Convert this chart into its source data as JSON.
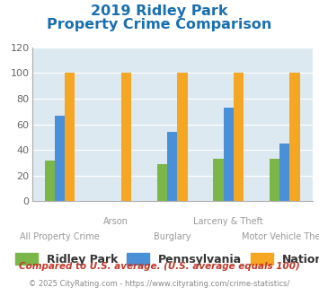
{
  "title_line1": "2019 Ridley Park",
  "title_line2": "Property Crime Comparison",
  "title_color": "#1a6faf",
  "categories": [
    "All Property Crime",
    "Arson",
    "Burglary",
    "Larceny & Theft",
    "Motor Vehicle Theft"
  ],
  "ridley_park": [
    32,
    0,
    29,
    33,
    33
  ],
  "pennsylvania": [
    67,
    0,
    54,
    73,
    45
  ],
  "national": [
    100,
    100,
    100,
    100,
    100
  ],
  "bar_color_ridley": "#7ab648",
  "bar_color_pa": "#4a90d9",
  "bar_color_national": "#f5a623",
  "ylim": [
    0,
    120
  ],
  "yticks": [
    0,
    20,
    40,
    60,
    80,
    100,
    120
  ],
  "legend_labels": [
    "Ridley Park",
    "Pennsylvania",
    "National"
  ],
  "footnote1": "Compared to U.S. average. (U.S. average equals 100)",
  "footnote2": "© 2025 CityRating.com - https://www.cityrating.com/crime-statistics/",
  "footnote1_color": "#c0392b",
  "footnote2_color": "#888888",
  "bg_color": "#dce9f0",
  "fig_bg": "#ffffff",
  "xlabel_fontsize": 7.0,
  "title_fontsize": 11.5,
  "legend_fontsize": 9.0,
  "footnote1_fontsize": 7.5,
  "footnote2_fontsize": 6.0,
  "bar_width": 0.18
}
